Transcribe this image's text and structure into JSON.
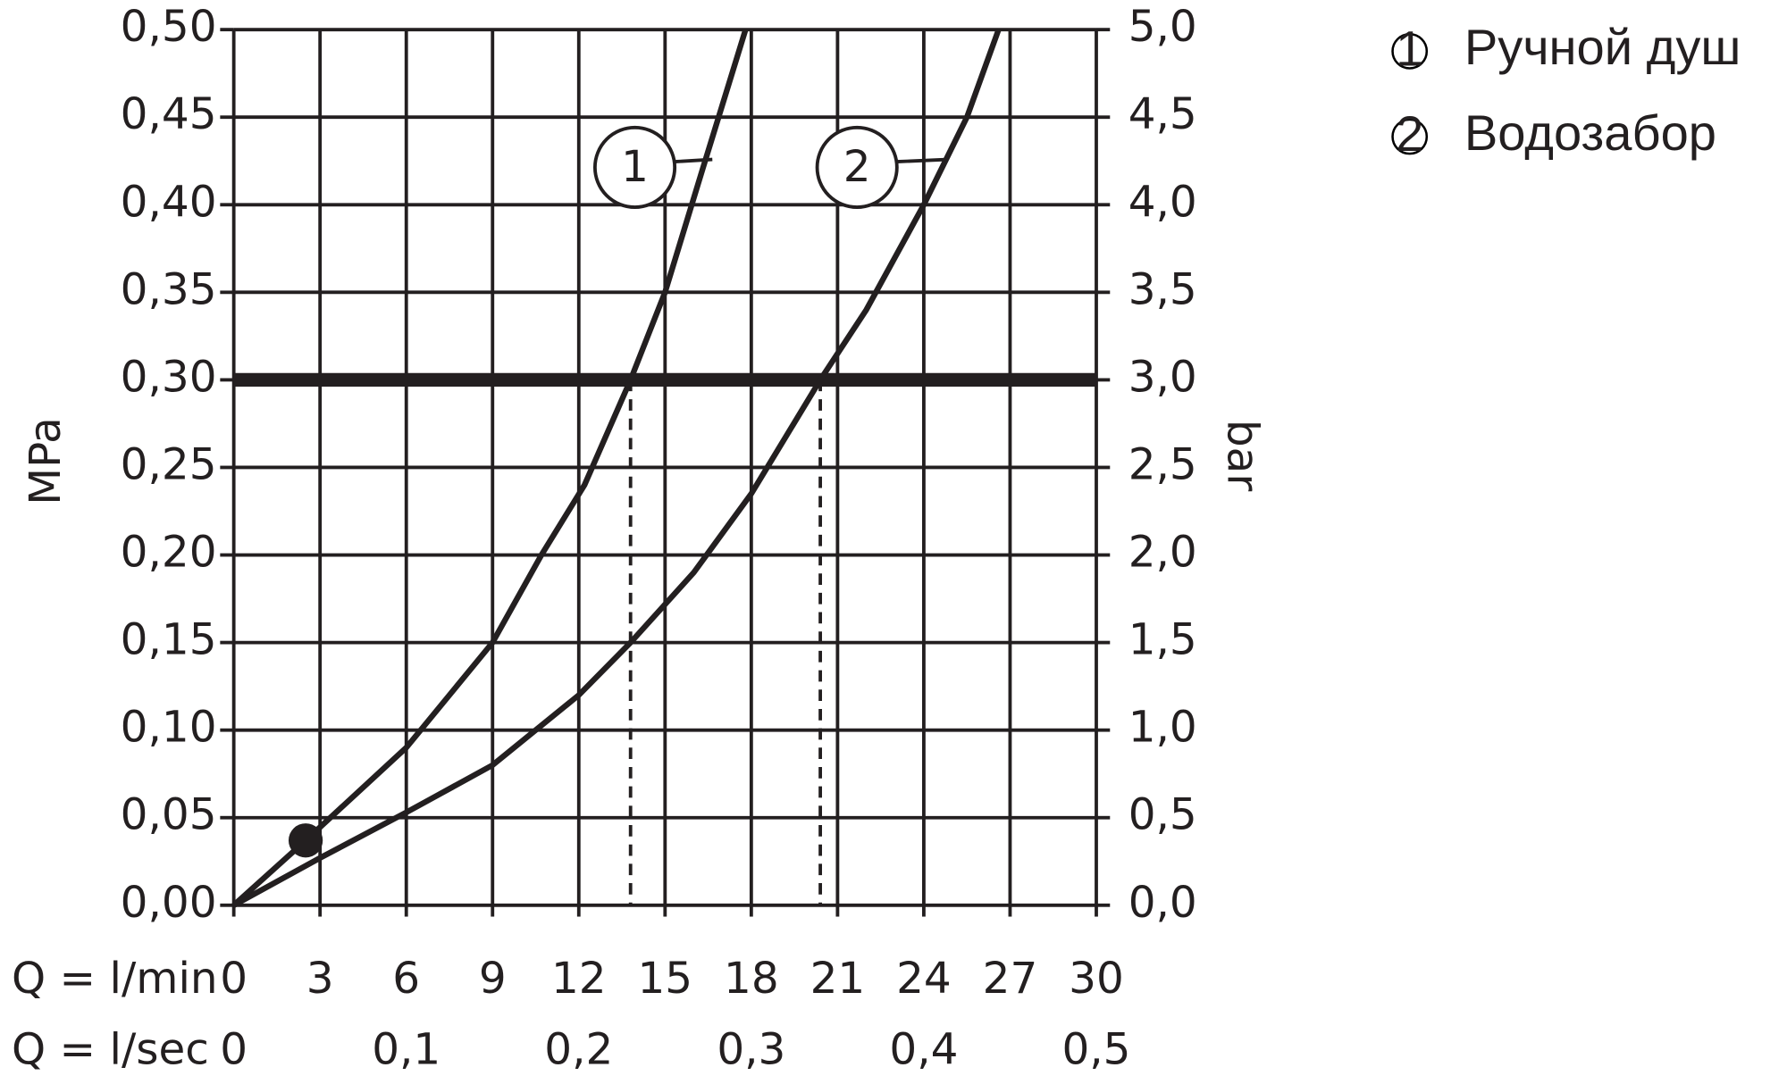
{
  "chart_data": {
    "type": "line",
    "xlabel": "Q = l/min",
    "x2label": "Q = l/sec",
    "ylabel": "MPa",
    "y2label": "bar",
    "xlim": [
      0,
      30
    ],
    "xticks": [
      0,
      3,
      6,
      9,
      12,
      15,
      18,
      21,
      24,
      27,
      30
    ],
    "x2lim": [
      0,
      0.5
    ],
    "x2ticks": [
      0,
      {
        "value": 0.1,
        "label": "0,1"
      },
      {
        "value": 0.2,
        "label": "0,2"
      },
      {
        "value": 0.3,
        "label": "0,3"
      },
      {
        "value": 0.4,
        "label": "0,4"
      },
      {
        "value": 0.5,
        "label": "0,5"
      }
    ],
    "ylim": [
      0,
      0.5
    ],
    "yticks": [
      {
        "value": 0,
        "label": "0,00"
      },
      {
        "value": 0.05,
        "label": "0,05"
      },
      {
        "value": 0.1,
        "label": "0,10"
      },
      {
        "value": 0.15,
        "label": "0,15"
      },
      {
        "value": 0.2,
        "label": "0,20"
      },
      {
        "value": 0.25,
        "label": "0,25"
      },
      {
        "value": 0.3,
        "label": "0,30"
      },
      {
        "value": 0.35,
        "label": "0,35"
      },
      {
        "value": 0.4,
        "label": "0,40"
      },
      {
        "value": 0.45,
        "label": "0,45"
      },
      {
        "value": 0.5,
        "label": "0,50"
      }
    ],
    "y2lim": [
      0,
      5
    ],
    "y2ticks": [
      {
        "value": 0,
        "label": "0,0"
      },
      {
        "value": 0.5,
        "label": "0,5"
      },
      {
        "value": 1,
        "label": "1,0"
      },
      {
        "value": 1.5,
        "label": "1,5"
      },
      {
        "value": 2,
        "label": "2,0"
      },
      {
        "value": 2.5,
        "label": "2,5"
      },
      {
        "value": 3,
        "label": "3,0"
      },
      {
        "value": 3.5,
        "label": "3,5"
      },
      {
        "value": 4,
        "label": "4,0"
      },
      {
        "value": 4.5,
        "label": "4,5"
      },
      {
        "value": 5,
        "label": "5,0"
      }
    ],
    "grid": true,
    "color": "#231f20",
    "reference_line": 0.3,
    "crossings": [
      13.8,
      20.4
    ],
    "point": {
      "x": 2.5,
      "y": 0.037
    },
    "series": [
      {
        "name": "Ручной душ",
        "label": "1",
        "color": "#231f20",
        "x": [
          0,
          2.5,
          6,
          9,
          10.7,
          12.2,
          13.8,
          15,
          16.3,
          17.8
        ],
        "values": [
          0,
          0.037,
          0.09,
          0.15,
          0.2,
          0.24,
          0.3,
          0.35,
          0.42,
          0.5
        ]
      },
      {
        "name": "Водозабор",
        "label": "2",
        "color": "#231f20",
        "x": [
          0,
          3,
          6,
          9,
          12,
          13.8,
          16,
          18,
          20.4,
          22,
          24,
          25.5,
          26.6
        ],
        "values": [
          0,
          0.027,
          0.053,
          0.08,
          0.12,
          0.15,
          0.19,
          0.235,
          0.3,
          0.34,
          0.4,
          0.45,
          0.5
        ]
      }
    ]
  }
}
